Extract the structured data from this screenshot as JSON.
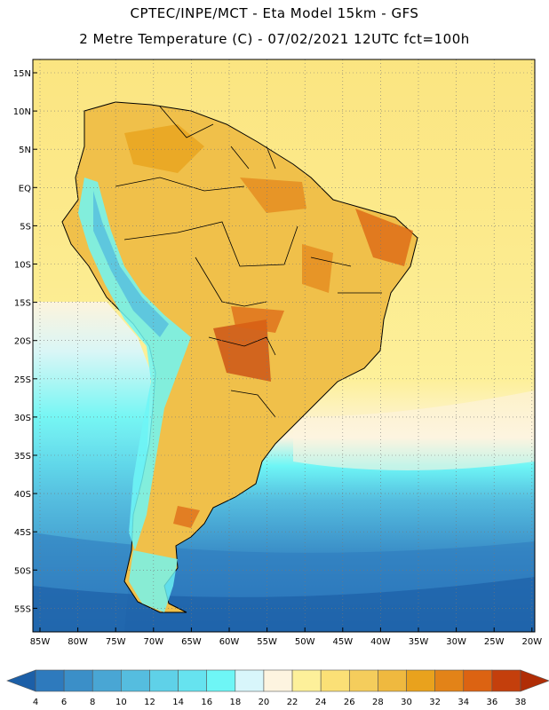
{
  "header": {
    "line1": "CPTEC/INPE/MCT -  Eta Model 15km - GFS",
    "line2": "2 Metre Temperature (C) - 07/02/2021 12UTC fct=100h"
  },
  "axes": {
    "lat_labels": [
      "15N",
      "10N",
      "5N",
      "EQ",
      "5S",
      "10S",
      "15S",
      "20S",
      "25S",
      "30S",
      "35S",
      "40S",
      "45S",
      "50S",
      "55S"
    ],
    "lon_labels": [
      "85W",
      "80W",
      "75W",
      "70W",
      "65W",
      "60W",
      "55W",
      "50W",
      "45W",
      "40W",
      "35W",
      "30W",
      "25W",
      "20W"
    ]
  },
  "legend": {
    "levels": [
      "4",
      "6",
      "8",
      "10",
      "12",
      "14",
      "16",
      "18",
      "20",
      "22",
      "24",
      "26",
      "28",
      "30",
      "32",
      "34",
      "36",
      "38"
    ],
    "colors": [
      "#1c5fa7",
      "#2e7abd",
      "#3b8fc8",
      "#49a6d4",
      "#55bddf",
      "#5fd1e8",
      "#66e3ef",
      "#6ef6f6",
      "#d8f6fb",
      "#fdf4e0",
      "#fdf09a",
      "#fbe076",
      "#f5cd5c",
      "#efb93f",
      "#e9a21d",
      "#e38318",
      "#dc6312",
      "#c43f0c",
      "#b02d06"
    ]
  },
  "colors": {
    "ocean_cold": "#1c5fa7",
    "ocean_mid": "#49a6d4",
    "ocean_cool": "#66e3ef",
    "ocean_warm": "#fdf09a",
    "land_hot": "#efb93f",
    "land_very_hot": "#dc6312",
    "andes": "#6ef6f6"
  }
}
